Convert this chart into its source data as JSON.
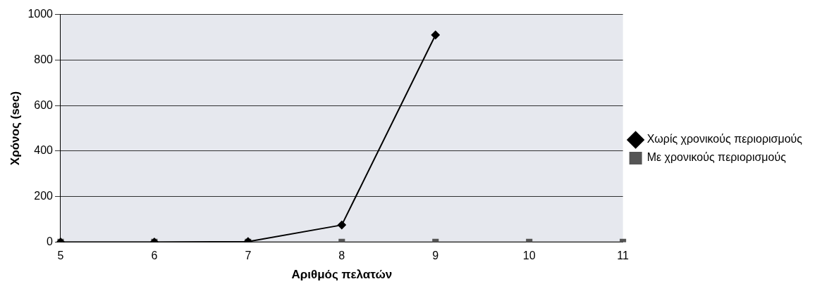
{
  "chart_data": {
    "type": "line",
    "xlabel": "Αριθμός πελατών",
    "ylabel": "Χρόνος (sec)",
    "categories": [
      "5",
      "6",
      "7",
      "8",
      "9",
      "10",
      "11"
    ],
    "series": [
      {
        "name": "Χωρίς χρονικούς περιορισμούς",
        "color": "#000000",
        "marker": "diamond",
        "values": [
          0,
          0,
          2,
          75,
          910,
          null,
          null
        ]
      },
      {
        "name": "Με χρονικούς περιορισμούς",
        "color": "#555555",
        "marker": "square",
        "values": [
          0,
          0,
          0,
          0,
          0,
          0,
          0
        ]
      }
    ],
    "ylim": [
      0,
      1000
    ],
    "yticks": [
      0,
      200,
      400,
      600,
      800,
      1000
    ],
    "grid": "y",
    "legend": "right"
  }
}
